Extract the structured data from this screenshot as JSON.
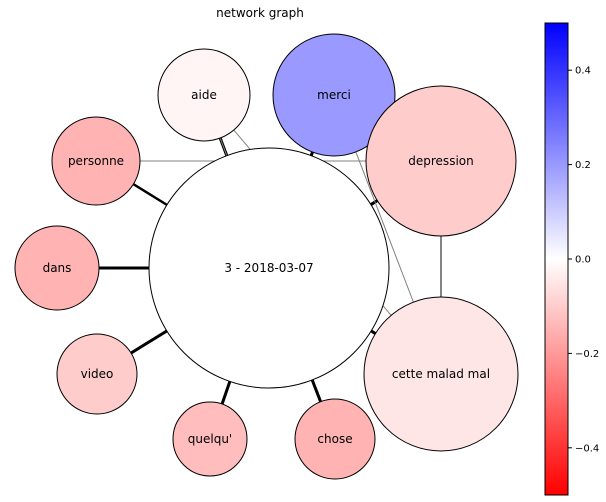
{
  "title": "network graph",
  "center_node": {
    "label": "3 - 2018-03-07",
    "value": 0.0
  },
  "nodes": [
    {
      "id": "aide",
      "label": "aide",
      "value": -0.02
    },
    {
      "id": "merci",
      "label": "merci",
      "value": 0.2
    },
    {
      "id": "depression",
      "label": "depression",
      "value": -0.1
    },
    {
      "id": "personne",
      "label": "personne",
      "value": -0.15
    },
    {
      "id": "dans",
      "label": "dans",
      "value": -0.15
    },
    {
      "id": "video",
      "label": "video",
      "value": -0.1
    },
    {
      "id": "quelqu",
      "label": "quelqu'",
      "value": -0.13
    },
    {
      "id": "chose",
      "label": "chose",
      "value": -0.15
    },
    {
      "id": "cette",
      "label": "cette malad mal",
      "value": -0.05
    }
  ],
  "edges": [
    {
      "source": "center",
      "target": "aide",
      "weight": "heavy"
    },
    {
      "source": "center",
      "target": "merci",
      "weight": "heavy"
    },
    {
      "source": "center",
      "target": "depression",
      "weight": "heavy"
    },
    {
      "source": "center",
      "target": "personne",
      "weight": "double"
    },
    {
      "source": "center",
      "target": "dans",
      "weight": "heavy"
    },
    {
      "source": "center",
      "target": "video",
      "weight": "heavy"
    },
    {
      "source": "center",
      "target": "quelqu",
      "weight": "heavy"
    },
    {
      "source": "center",
      "target": "chose",
      "weight": "heavy"
    },
    {
      "source": "center",
      "target": "cette",
      "weight": "heavy"
    },
    {
      "source": "aide",
      "target": "cette",
      "weight": "light"
    },
    {
      "source": "aide",
      "target": "center",
      "weight": "light"
    },
    {
      "source": "personne",
      "target": "depression",
      "weight": "light"
    },
    {
      "source": "merci",
      "target": "cette",
      "weight": "light"
    },
    {
      "source": "depression",
      "target": "cette",
      "weight": "medium"
    }
  ],
  "colorbar": {
    "colormap": "bwr_r",
    "range": [
      -0.5,
      0.5
    ],
    "ticks": [
      "0.4",
      "0.2",
      "0.0",
      "−0.2",
      "−0.4"
    ]
  }
}
